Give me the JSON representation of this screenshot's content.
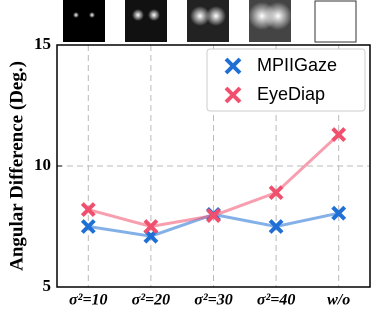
{
  "chart_data": {
    "type": "line",
    "y_label": "Angular Difference (Deg.)",
    "categories": [
      "σ²=10",
      "σ²=20",
      "σ²=30",
      "σ²=40",
      "w/o"
    ],
    "series": [
      {
        "name": "MPIIGaze",
        "color": "#1f6fd6",
        "values": [
          7.5,
          7.1,
          8.0,
          7.5,
          8.05
        ]
      },
      {
        "name": "EyeDiap",
        "color": "#f0506e",
        "values": [
          8.2,
          7.5,
          7.95,
          8.9,
          11.3
        ]
      }
    ],
    "ylim": [
      5,
      15
    ],
    "yticks": [
      5,
      10,
      15
    ],
    "grid": true,
    "legend": "upper right"
  }
}
